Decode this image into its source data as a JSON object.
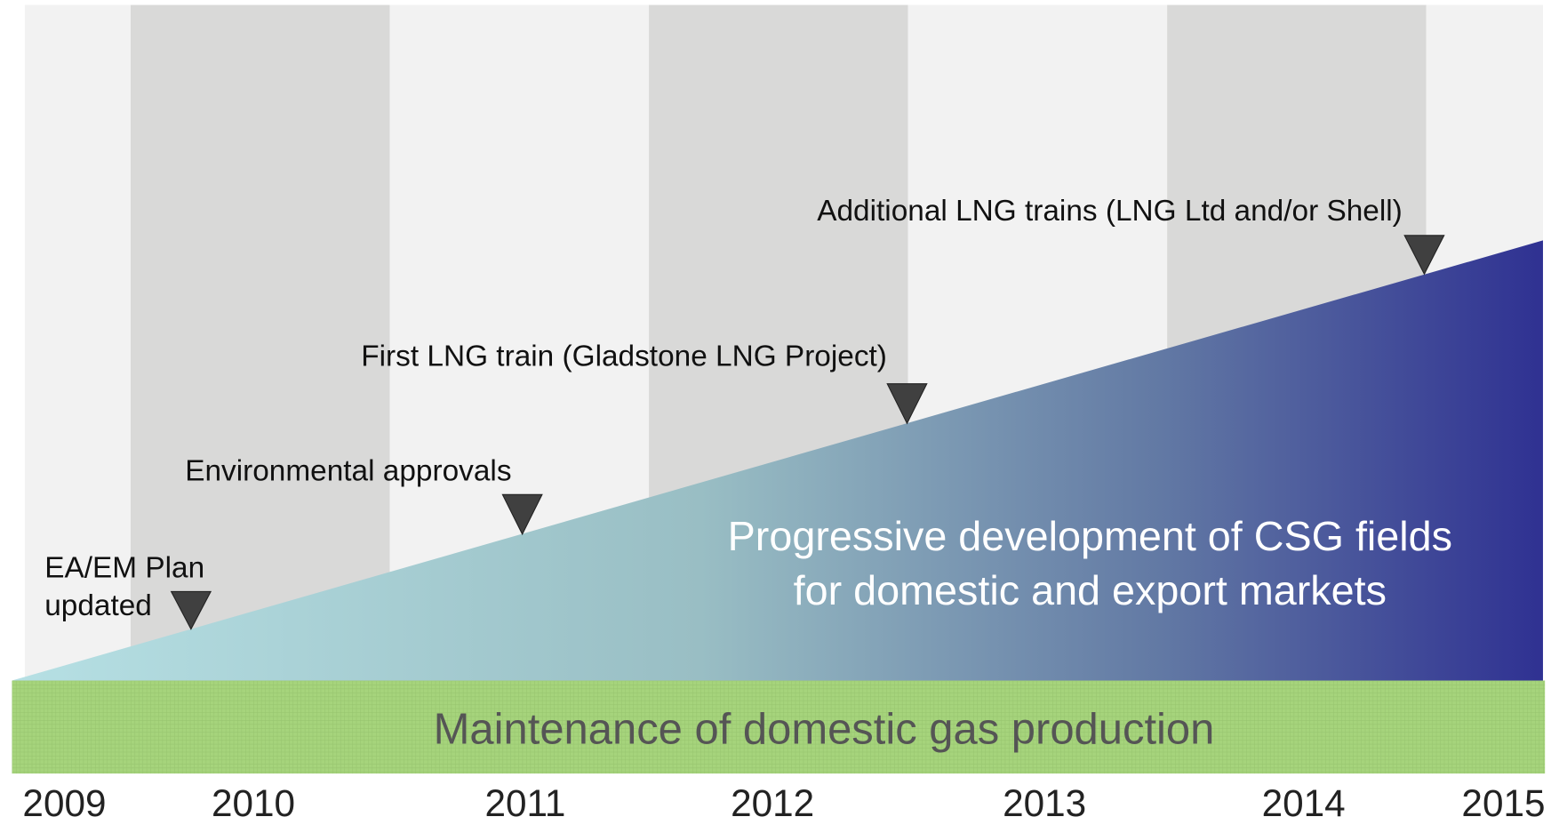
{
  "milestones": [
    {
      "lines": [
        "EA/EM Plan",
        "updated"
      ]
    },
    {
      "lines": [
        "Environmental approvals"
      ]
    },
    {
      "lines": [
        "First LNG train (Gladstone LNG Project)"
      ]
    },
    {
      "lines": [
        "Additional LNG trains (LNG Ltd and/or Shell)"
      ]
    }
  ],
  "development": {
    "lines": [
      "Progressive development of CSG fields",
      "for domestic and export markets"
    ]
  },
  "maintenance": "Maintenance of domestic gas production",
  "years": [
    "2009",
    "2010",
    "2011",
    "2012",
    "2013",
    "2014",
    "2015"
  ]
}
